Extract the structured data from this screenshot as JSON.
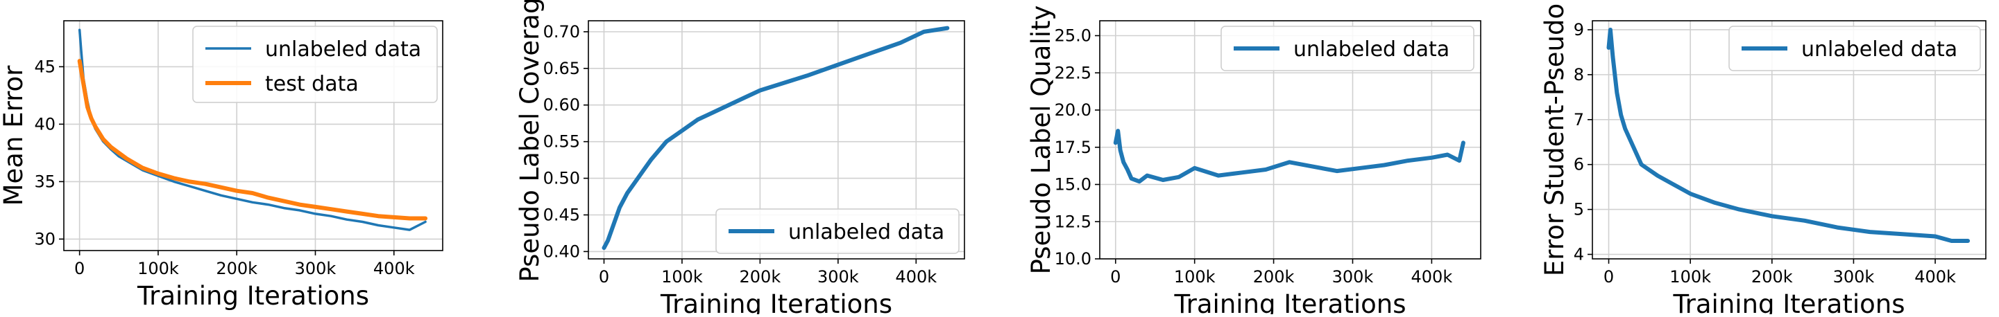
{
  "chart_data": [
    {
      "type": "line",
      "xlabel": "Training Iterations",
      "ylabel": "Mean Error",
      "xlim": [
        -20000,
        462000
      ],
      "ylim": [
        29,
        49
      ],
      "xticks": [
        0,
        100000,
        200000,
        300000,
        400000
      ],
      "xtick_labels": [
        "0",
        "100k",
        "200k",
        "300k",
        "400k"
      ],
      "yticks": [
        30,
        35,
        40,
        45
      ],
      "ytick_labels": [
        "30",
        "35",
        "40",
        "45"
      ],
      "grid": true,
      "legend_position": "top-right",
      "series": [
        {
          "name": "unlabeled data",
          "color": "#1f77b4",
          "width": "thin",
          "x": [
            0,
            2000,
            5000,
            10000,
            15000,
            20000,
            30000,
            40000,
            50000,
            60000,
            80000,
            100000,
            120000,
            140000,
            160000,
            180000,
            200000,
            220000,
            240000,
            260000,
            280000,
            300000,
            320000,
            340000,
            360000,
            380000,
            400000,
            420000,
            440000
          ],
          "y": [
            48.2,
            46.5,
            44.0,
            42.0,
            40.5,
            39.6,
            38.5,
            37.8,
            37.2,
            36.8,
            36.0,
            35.5,
            35.0,
            34.6,
            34.2,
            33.8,
            33.5,
            33.2,
            33.0,
            32.7,
            32.5,
            32.2,
            32.0,
            31.7,
            31.5,
            31.2,
            31.0,
            30.8,
            31.5
          ]
        },
        {
          "name": "test data",
          "color": "#ff7f0e",
          "width": "thick",
          "x": [
            0,
            5000,
            10000,
            15000,
            20000,
            30000,
            40000,
            50000,
            60000,
            80000,
            100000,
            120000,
            140000,
            160000,
            180000,
            200000,
            220000,
            240000,
            260000,
            280000,
            300000,
            320000,
            340000,
            360000,
            380000,
            400000,
            420000,
            440000
          ],
          "y": [
            45.5,
            43.5,
            41.5,
            40.5,
            39.8,
            38.7,
            38.0,
            37.5,
            37.0,
            36.2,
            35.7,
            35.3,
            35.0,
            34.8,
            34.5,
            34.2,
            34.0,
            33.6,
            33.3,
            33.0,
            32.8,
            32.6,
            32.4,
            32.2,
            32.0,
            31.9,
            31.8,
            31.8
          ]
        }
      ]
    },
    {
      "type": "line",
      "xlabel": "Training Iterations",
      "ylabel": "Pseudo Label Coverag",
      "xlim": [
        -20000,
        462000
      ],
      "ylim": [
        0.39,
        0.715
      ],
      "xticks": [
        0,
        100000,
        200000,
        300000,
        400000
      ],
      "xtick_labels": [
        "0",
        "100k",
        "200k",
        "300k",
        "400k"
      ],
      "yticks": [
        0.4,
        0.45,
        0.5,
        0.55,
        0.6,
        0.65,
        0.7
      ],
      "ytick_labels": [
        "0.40",
        "0.45",
        "0.50",
        "0.55",
        "0.60",
        "0.65",
        "0.70"
      ],
      "grid": true,
      "legend_position": "bottom-right",
      "series": [
        {
          "name": "unlabeled data",
          "color": "#1f77b4",
          "width": "thick",
          "x": [
            0,
            5000,
            10000,
            20000,
            30000,
            40000,
            50000,
            60000,
            80000,
            100000,
            120000,
            150000,
            180000,
            200000,
            230000,
            260000,
            300000,
            340000,
            380000,
            410000,
            440000
          ],
          "y": [
            0.405,
            0.415,
            0.43,
            0.46,
            0.48,
            0.495,
            0.51,
            0.525,
            0.55,
            0.565,
            0.58,
            0.595,
            0.61,
            0.62,
            0.63,
            0.64,
            0.655,
            0.67,
            0.685,
            0.7,
            0.705
          ]
        }
      ]
    },
    {
      "type": "line",
      "xlabel": "Training Iterations",
      "ylabel": "Pseudo Label Quality",
      "xlim": [
        -20000,
        462000
      ],
      "ylim": [
        10,
        26
      ],
      "xticks": [
        0,
        100000,
        200000,
        300000,
        400000
      ],
      "xtick_labels": [
        "0",
        "100k",
        "200k",
        "300k",
        "400k"
      ],
      "yticks": [
        10.0,
        12.5,
        15.0,
        17.5,
        20.0,
        22.5,
        25.0
      ],
      "ytick_labels": [
        "10.0",
        "12.5",
        "15.0",
        "17.5",
        "20.0",
        "22.5",
        "25.0"
      ],
      "grid": true,
      "legend_position": "top-right",
      "series": [
        {
          "name": "unlabeled data",
          "color": "#1f77b4",
          "width": "thick",
          "x": [
            0,
            3000,
            6000,
            10000,
            15000,
            20000,
            30000,
            40000,
            60000,
            80000,
            100000,
            130000,
            160000,
            190000,
            220000,
            250000,
            280000,
            310000,
            340000,
            370000,
            400000,
            420000,
            435000,
            440000
          ],
          "y": [
            17.8,
            18.6,
            17.3,
            16.5,
            16.0,
            15.4,
            15.2,
            15.6,
            15.3,
            15.5,
            16.1,
            15.6,
            15.8,
            16.0,
            16.5,
            16.2,
            15.9,
            16.1,
            16.3,
            16.6,
            16.8,
            17.0,
            16.6,
            17.8
          ]
        }
      ]
    },
    {
      "type": "line",
      "xlabel": "Training Iterations",
      "ylabel": "Error Student-Pseudo",
      "xlim": [
        -20000,
        462000
      ],
      "ylim": [
        3.9,
        9.2
      ],
      "xticks": [
        0,
        100000,
        200000,
        300000,
        400000
      ],
      "xtick_labels": [
        "0",
        "100k",
        "200k",
        "300k",
        "400k"
      ],
      "yticks": [
        4,
        5,
        6,
        7,
        8,
        9
      ],
      "ytick_labels": [
        "4",
        "5",
        "6",
        "7",
        "8",
        "9"
      ],
      "grid": true,
      "legend_position": "top-right",
      "series": [
        {
          "name": "unlabeled data",
          "color": "#1f77b4",
          "width": "thick",
          "x": [
            0,
            2000,
            5000,
            10000,
            15000,
            20000,
            30000,
            40000,
            60000,
            80000,
            100000,
            130000,
            160000,
            200000,
            240000,
            280000,
            320000,
            360000,
            400000,
            420000,
            440000
          ],
          "y": [
            8.6,
            9.0,
            8.4,
            7.6,
            7.1,
            6.8,
            6.4,
            6.0,
            5.75,
            5.55,
            5.35,
            5.15,
            5.0,
            4.85,
            4.75,
            4.6,
            4.5,
            4.45,
            4.4,
            4.3,
            4.3
          ]
        }
      ]
    }
  ]
}
